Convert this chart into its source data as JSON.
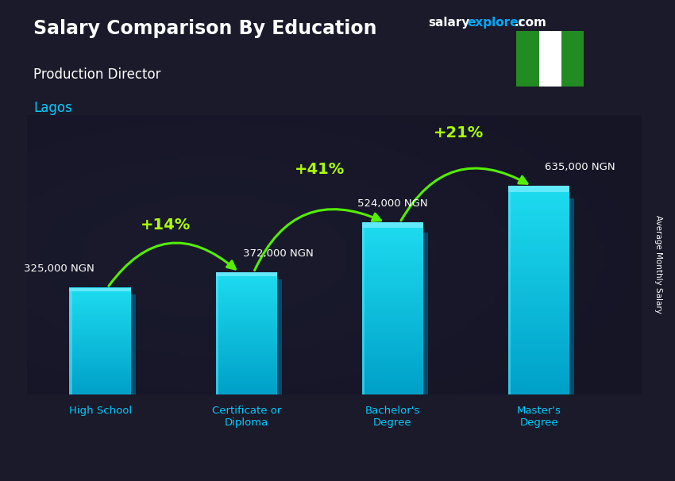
{
  "title": "Salary Comparison By Education",
  "subtitle": "Production Director",
  "location": "Lagos",
  "ylabel": "Average Monthly Salary",
  "categories": [
    "High School",
    "Certificate or\nDiploma",
    "Bachelor's\nDegree",
    "Master's\nDegree"
  ],
  "values": [
    325000,
    372000,
    524000,
    635000
  ],
  "value_labels": [
    "325,000 NGN",
    "372,000 NGN",
    "524,000 NGN",
    "635,000 NGN"
  ],
  "pct_labels": [
    "+14%",
    "+41%",
    "+21%"
  ],
  "bar_color": "#00c8e8",
  "bar_color_light": "#40e0f0",
  "bar_color_dark": "#0090b0",
  "bg_color": "#1a1a2e",
  "title_color": "#ffffff",
  "subtitle_color": "#ffffff",
  "location_color": "#00ccff",
  "value_label_color": "#ffffff",
  "pct_color": "#aaff00",
  "cat_label_color": "#00ccff",
  "watermark_salary_color": "#ffffff",
  "watermark_explorer_color": "#00aaff",
  "watermark_com_color": "#ffffff",
  "ylim": [
    0,
    850000
  ],
  "figsize": [
    8.5,
    6.06
  ],
  "dpi": 100,
  "bar_positions": [
    0,
    1,
    2,
    3
  ],
  "bar_width": 0.42,
  "flag_green": "#228B22",
  "flag_white": "#ffffff"
}
